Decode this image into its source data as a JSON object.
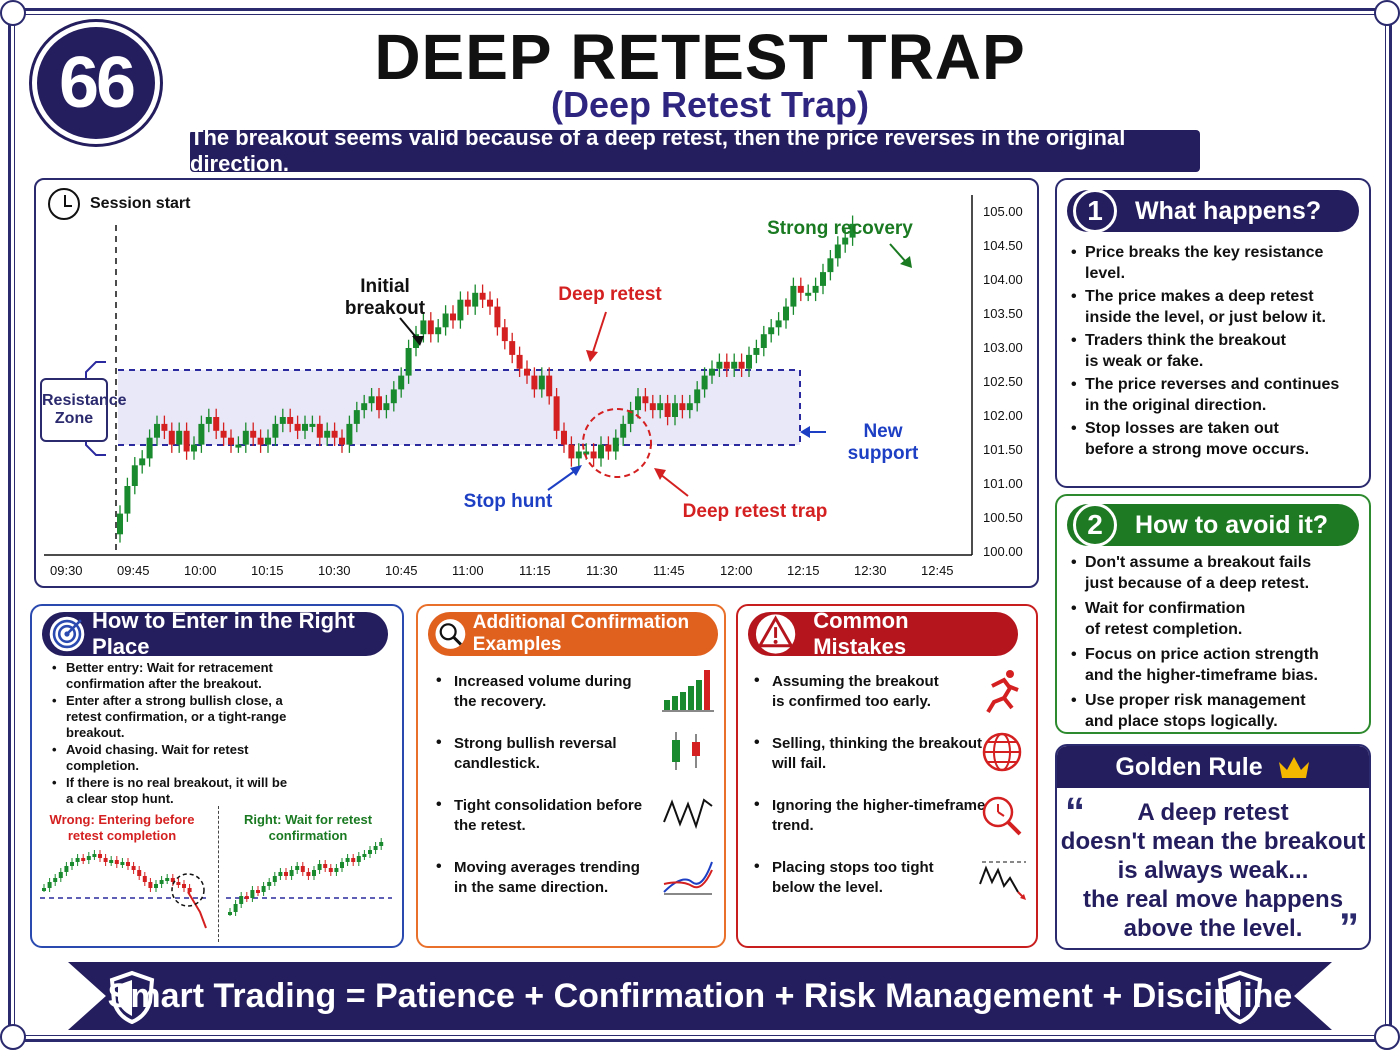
{
  "number": "66",
  "title": "DEEP RETEST TRAP",
  "subtitle": "(Deep Retest Trap)",
  "banner": "The breakout seems valid because of a deep retest, then the price reverses in the original direction.",
  "chart": {
    "session_label": "Session start",
    "resistance_zone": [
      "Resistance",
      "Zone"
    ],
    "y_ticks": [
      "105.00",
      "104.50",
      "104.00",
      "103.50",
      "103.00",
      "102.50",
      "102.00",
      "101.50",
      "101.00",
      "100.50",
      "100.00"
    ],
    "x_ticks": [
      "09:30",
      "09:45",
      "10:00",
      "10:15",
      "10:30",
      "10:45",
      "11:00",
      "11:15",
      "11:30",
      "11:45",
      "12:00",
      "12:15",
      "12:30",
      "12:45"
    ],
    "annotations": {
      "initial_breakout": [
        "Initial",
        "breakout"
      ],
      "deep_retest": "Deep retest",
      "strong_recovery": "Strong recovery",
      "new_support": "New support",
      "stop_hunt": "Stop hunt",
      "deep_retest_trap": "Deep retest trap"
    },
    "colors": {
      "up": "#1a8a2e",
      "down": "#d42020",
      "zone": "#2b2a9e",
      "red_label": "#d42020",
      "blue_label": "#1d3fc4",
      "green_label": "#1a7a22"
    }
  },
  "what_happens": {
    "number": "1",
    "title": "What happens?",
    "items": [
      [
        "Price breaks the key resistance",
        "level."
      ],
      [
        "The price makes a deep retest",
        "inside the level, or just below it."
      ],
      [
        "Traders think the breakout",
        "is weak or fake."
      ],
      [
        "The price reverses and continues",
        "in the original direction."
      ],
      [
        "Stop losses are taken out",
        "before a strong move occurs."
      ]
    ]
  },
  "how_avoid": {
    "number": "2",
    "title": "How to avoid it?",
    "items": [
      [
        "Don't assume a breakout fails",
        "just because of a deep retest."
      ],
      [
        "Wait for confirmation",
        "of retest completion."
      ],
      [
        "Focus on price action strength",
        "and the higher-timeframe bias."
      ],
      [
        "Use proper risk management",
        "and place stops logically."
      ]
    ]
  },
  "golden_rule": {
    "title": "Golden Rule",
    "lines": [
      "A deep retest",
      "doesn't mean the breakout",
      "is always weak...",
      "the real move happens",
      "above the level."
    ]
  },
  "enter": {
    "title": "How to Enter in the Right Place",
    "items": [
      [
        "Better entry: Wait for retracement",
        "confirmation after the breakout."
      ],
      [
        "Enter after a strong bullish close, a",
        "retest confirmation, or a tight-range",
        "breakout."
      ],
      [
        "Avoid chasing. Wait for retest",
        "completion."
      ],
      [
        "If there is no real breakout, it will be",
        "a clear stop hunt."
      ]
    ],
    "wrong": [
      "Wrong: Entering before",
      "retest completion"
    ],
    "right": [
      "Right: Wait for retest",
      "confirmation"
    ]
  },
  "confirm": {
    "title": "Additional Confirmation Examples",
    "items": [
      {
        "lines": [
          "Increased volume during",
          "the recovery."
        ],
        "icon": "volume-bars-icon"
      },
      {
        "lines": [
          "Strong bullish reversal",
          "candlestick."
        ],
        "icon": "candles-icon"
      },
      {
        "lines": [
          "Tight consolidation before",
          "the retest."
        ],
        "icon": "zigzag-icon"
      },
      {
        "lines": [
          "Moving averages trending",
          "in the same direction."
        ],
        "icon": "moving-average-icon"
      }
    ]
  },
  "mistakes": {
    "title": "Common Mistakes",
    "items": [
      {
        "lines": [
          "Assuming the breakout",
          "is confirmed too early."
        ],
        "icon": "runner-icon"
      },
      {
        "lines": [
          "Selling, thinking the breakout",
          "will fail."
        ],
        "icon": "globe-icon"
      },
      {
        "lines": [
          "Ignoring the higher-timeframe",
          "trend."
        ],
        "icon": "clock-search-icon"
      },
      {
        "lines": [
          "Placing stops too tight",
          "below the level."
        ],
        "icon": "falling-line-icon"
      }
    ]
  },
  "footer": "Smart Trading = Patience + Confirmation + Risk Management + Discipline"
}
